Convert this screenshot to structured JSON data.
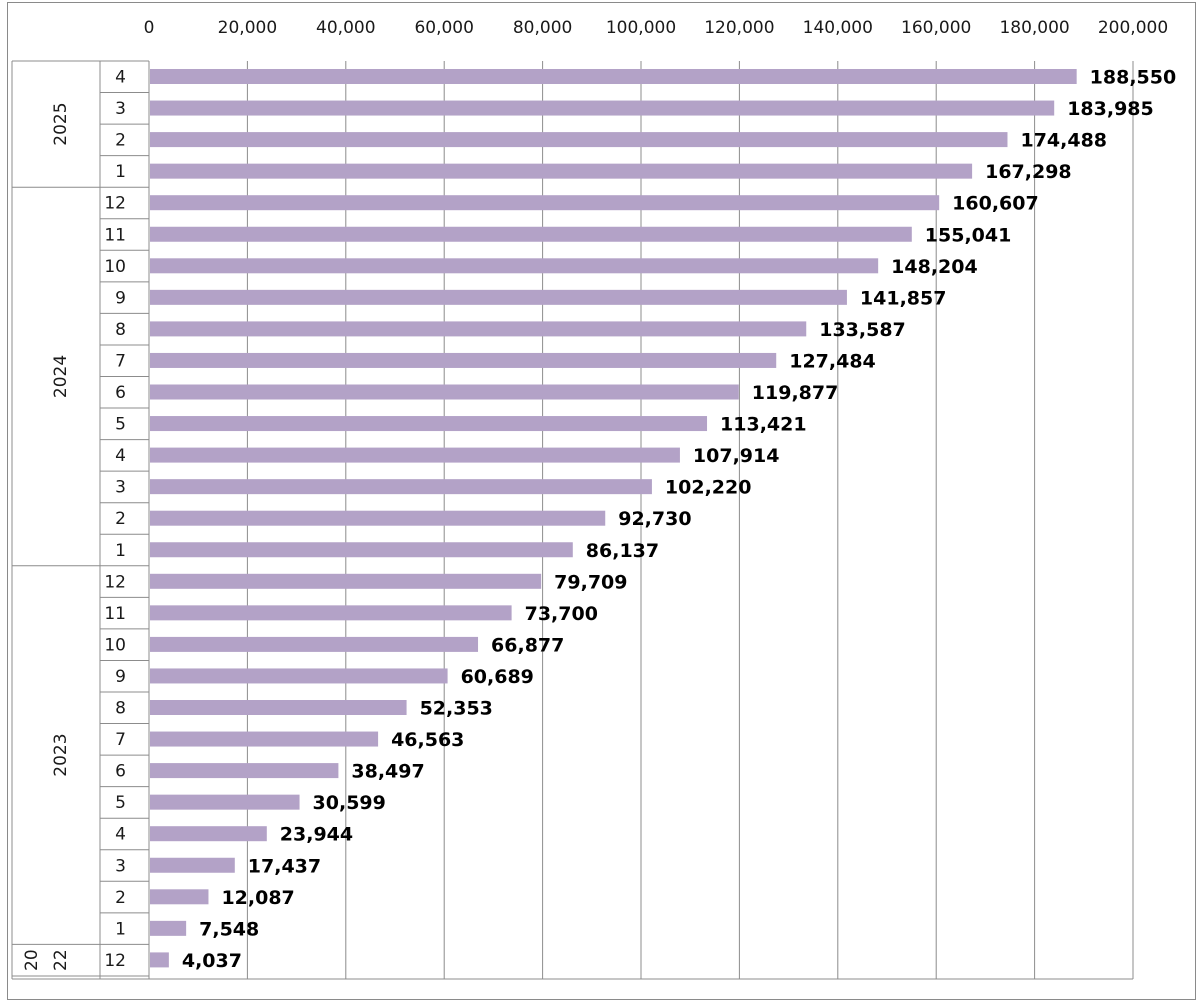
{
  "chart_data": {
    "type": "bar",
    "orientation": "horizontal",
    "xlim": [
      0,
      200000
    ],
    "xticks": [
      0,
      20000,
      40000,
      60000,
      80000,
      100000,
      120000,
      140000,
      160000,
      180000,
      200000
    ],
    "xtick_labels": [
      "0",
      "20,000",
      "40,000",
      "60,000",
      "80,000",
      "100,000",
      "120,000",
      "140,000",
      "160,000",
      "180,000",
      "200,000"
    ],
    "axis_position": "top",
    "grid": "vertical",
    "legend": "none",
    "bar_color": "#b3a2c7",
    "groups": [
      {
        "year": "2025",
        "year_label_lines": [
          "2025"
        ],
        "months": [
          "4",
          "3",
          "2",
          "1"
        ],
        "values": [
          188550,
          183985,
          174488,
          167298
        ],
        "value_labels": [
          "188,550",
          "183,985",
          "174,488",
          "167,298"
        ]
      },
      {
        "year": "2024",
        "year_label_lines": [
          "2024"
        ],
        "months": [
          "12",
          "11",
          "10",
          "9",
          "8",
          "7",
          "6",
          "5",
          "4",
          "3",
          "2",
          "1"
        ],
        "values": [
          160607,
          155041,
          148204,
          141857,
          133587,
          127484,
          119877,
          113421,
          107914,
          102220,
          92730,
          86137
        ],
        "value_labels": [
          "160,607",
          "155,041",
          "148,204",
          "141,857",
          "133,587",
          "127,484",
          "119,877",
          "113,421",
          "107,914",
          "102,220",
          "92,730",
          "86,137"
        ]
      },
      {
        "year": "2023",
        "year_label_lines": [
          "2023"
        ],
        "months": [
          "12",
          "11",
          "10",
          "9",
          "8",
          "7",
          "6",
          "5",
          "4",
          "3",
          "2",
          "1"
        ],
        "values": [
          79709,
          73700,
          66877,
          60689,
          52353,
          46563,
          38497,
          30599,
          23944,
          17437,
          12087,
          7548
        ],
        "value_labels": [
          "79,709",
          "73,700",
          "66,877",
          "60,689",
          "52,353",
          "46,563",
          "38,497",
          "30,599",
          "23,944",
          "17,437",
          "12,087",
          "7,548"
        ]
      },
      {
        "year": "2022",
        "year_label_lines": [
          "20",
          "22"
        ],
        "months": [
          "12"
        ],
        "values": [
          4037
        ],
        "value_labels": [
          "4,037"
        ]
      }
    ]
  }
}
